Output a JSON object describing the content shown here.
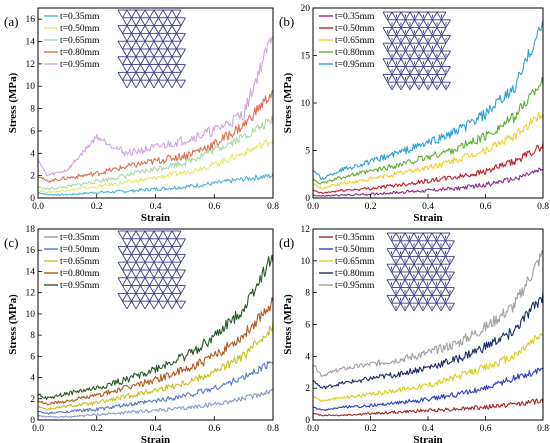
{
  "chart_data": [
    {
      "type": "line",
      "panel_label": "(a)",
      "xlabel": "Strain",
      "ylabel": "Stress (MPa)",
      "xlim": [
        0,
        0.8
      ],
      "ylim": [
        0,
        17
      ],
      "xticks": [
        "0.0",
        "0.2",
        "0.4",
        "0.6",
        "0.8"
      ],
      "yticks": [
        "0",
        "2",
        "4",
        "6",
        "8",
        "10",
        "12",
        "14",
        "16"
      ],
      "grid": false,
      "legend_position": "top-left",
      "inset": "triangular-hexagonal lattice",
      "series": [
        {
          "name": "t=0.35mm",
          "color": "#4fb3d9",
          "x": [
            0,
            0.03,
            0.1,
            0.2,
            0.3,
            0.4,
            0.5,
            0.6,
            0.7,
            0.8
          ],
          "y": [
            0.5,
            0.3,
            0.3,
            0.5,
            0.6,
            0.8,
            1.0,
            1.3,
            1.7,
            2.0
          ]
        },
        {
          "name": "t=0.50mm",
          "color": "#e8e870",
          "x": [
            0,
            0.03,
            0.1,
            0.2,
            0.3,
            0.4,
            0.5,
            0.6,
            0.7,
            0.8
          ],
          "y": [
            0.7,
            0.5,
            0.7,
            1.0,
            1.4,
            1.8,
            2.3,
            3.0,
            4.0,
            5.2
          ]
        },
        {
          "name": "t=0.65mm",
          "color": "#a8d8a8",
          "x": [
            0,
            0.03,
            0.1,
            0.2,
            0.3,
            0.4,
            0.5,
            0.6,
            0.7,
            0.8
          ],
          "y": [
            1.0,
            0.8,
            1.0,
            1.5,
            2.0,
            2.6,
            3.2,
            4.3,
            5.5,
            7.0
          ]
        },
        {
          "name": "t=0.80mm",
          "color": "#e07050",
          "x": [
            0,
            0.03,
            0.1,
            0.2,
            0.3,
            0.4,
            0.5,
            0.6,
            0.7,
            0.8
          ],
          "y": [
            2.0,
            1.5,
            1.8,
            2.2,
            2.8,
            3.3,
            3.8,
            4.8,
            6.5,
            9.5
          ]
        },
        {
          "name": "t=0.95mm",
          "color": "#d0a8e0",
          "x": [
            0,
            0.03,
            0.1,
            0.2,
            0.3,
            0.4,
            0.5,
            0.6,
            0.7,
            0.8
          ],
          "y": [
            3.5,
            2.0,
            2.5,
            5.5,
            4.0,
            4.5,
            5.2,
            6.0,
            7.5,
            14.8
          ]
        }
      ]
    },
    {
      "type": "line",
      "panel_label": "(b)",
      "xlabel": "Strain",
      "ylabel": "Stress (MPa)",
      "xlim": [
        0,
        0.8
      ],
      "ylim": [
        0,
        20
      ],
      "xticks": [
        "0.0",
        "0.2",
        "0.4",
        "0.6",
        "0.8"
      ],
      "yticks": [
        "0",
        "5",
        "10",
        "15",
        "20"
      ],
      "grid": false,
      "legend_position": "top-left",
      "inset": "snowflake hexagonal lattice",
      "series": [
        {
          "name": "t=0.35mm",
          "color": "#8b2c8b",
          "x": [
            0,
            0.03,
            0.1,
            0.2,
            0.3,
            0.4,
            0.5,
            0.6,
            0.7,
            0.8
          ],
          "y": [
            0.3,
            0.2,
            0.3,
            0.4,
            0.6,
            0.8,
            1.0,
            1.4,
            2.0,
            3.0
          ]
        },
        {
          "name": "t=0.50mm",
          "color": "#c0202c",
          "x": [
            0,
            0.03,
            0.1,
            0.2,
            0.3,
            0.4,
            0.5,
            0.6,
            0.7,
            0.8
          ],
          "y": [
            0.8,
            0.5,
            0.8,
            1.0,
            1.4,
            1.8,
            2.2,
            2.8,
            3.8,
            5.5
          ]
        },
        {
          "name": "t=0.65mm",
          "color": "#f0d030",
          "x": [
            0,
            0.03,
            0.1,
            0.2,
            0.3,
            0.4,
            0.5,
            0.6,
            0.7,
            0.8
          ],
          "y": [
            1.5,
            1.0,
            1.5,
            2.0,
            2.6,
            3.2,
            4.0,
            5.0,
            6.5,
            9.0
          ]
        },
        {
          "name": "t=0.80mm",
          "color": "#5cb030",
          "x": [
            0,
            0.03,
            0.1,
            0.2,
            0.3,
            0.4,
            0.5,
            0.6,
            0.7,
            0.8
          ],
          "y": [
            2.0,
            1.5,
            2.2,
            2.8,
            3.5,
            4.3,
            5.2,
            6.5,
            8.5,
            12.5
          ]
        },
        {
          "name": "t=0.95mm",
          "color": "#2ea0d8",
          "x": [
            0,
            0.03,
            0.1,
            0.2,
            0.3,
            0.4,
            0.5,
            0.6,
            0.7,
            0.8
          ],
          "y": [
            3.0,
            2.0,
            3.0,
            3.8,
            4.8,
            5.8,
            7.0,
            8.8,
            11.5,
            18.5
          ]
        }
      ]
    },
    {
      "type": "line",
      "panel_label": "(c)",
      "xlabel": "Strain",
      "ylabel": "Stress (MPa)",
      "xlim": [
        0,
        0.8
      ],
      "ylim": [
        0,
        18
      ],
      "xticks": [
        "0.0",
        "0.2",
        "0.4",
        "0.6",
        "0.8"
      ],
      "yticks": [
        "0",
        "2",
        "4",
        "6",
        "8",
        "10",
        "12",
        "14",
        "16",
        "18"
      ],
      "grid": false,
      "legend_position": "top-left",
      "inset": "triangular-hexagonal lattice",
      "series": [
        {
          "name": "t=0.35mm",
          "color": "#8899cc",
          "x": [
            0,
            0.03,
            0.1,
            0.2,
            0.3,
            0.4,
            0.5,
            0.6,
            0.7,
            0.8
          ],
          "y": [
            0.4,
            0.3,
            0.3,
            0.5,
            0.7,
            0.9,
            1.1,
            1.5,
            2.0,
            2.8
          ]
        },
        {
          "name": "t=0.50mm",
          "color": "#5a78c8",
          "x": [
            0,
            0.03,
            0.1,
            0.2,
            0.3,
            0.4,
            0.5,
            0.6,
            0.7,
            0.8
          ],
          "y": [
            0.8,
            0.6,
            0.8,
            1.0,
            1.4,
            1.8,
            2.3,
            3.0,
            4.0,
            5.5
          ]
        },
        {
          "name": "t=0.65mm",
          "color": "#c8c020",
          "x": [
            0,
            0.03,
            0.1,
            0.2,
            0.3,
            0.4,
            0.5,
            0.6,
            0.7,
            0.8
          ],
          "y": [
            1.3,
            1.0,
            1.3,
            1.6,
            2.2,
            2.8,
            3.5,
            4.5,
            6.0,
            8.8
          ]
        },
        {
          "name": "t=0.80mm",
          "color": "#b05a20",
          "x": [
            0,
            0.03,
            0.1,
            0.2,
            0.3,
            0.4,
            0.5,
            0.6,
            0.7,
            0.8
          ],
          "y": [
            1.8,
            1.5,
            1.8,
            2.3,
            3.0,
            3.8,
            4.7,
            6.0,
            8.0,
            11.2
          ]
        },
        {
          "name": "t=0.95mm",
          "color": "#2a5a2a",
          "x": [
            0,
            0.03,
            0.1,
            0.2,
            0.3,
            0.4,
            0.5,
            0.6,
            0.7,
            0.8
          ],
          "y": [
            2.5,
            2.0,
            2.5,
            3.0,
            3.8,
            4.8,
            6.0,
            7.8,
            10.5,
            15.5
          ]
        }
      ]
    },
    {
      "type": "line",
      "panel_label": "(d)",
      "xlabel": "Strain",
      "ylabel": "Stress (MPa)",
      "xlim": [
        0,
        0.8
      ],
      "ylim": [
        0,
        12
      ],
      "xticks": [
        "0.0",
        "0.2",
        "0.4",
        "0.6",
        "0.8"
      ],
      "yticks": [
        "0",
        "2",
        "4",
        "6",
        "8",
        "10",
        "12"
      ],
      "grid": false,
      "legend_position": "top-left",
      "inset": "snowflake hexagonal lattice",
      "series": [
        {
          "name": "t=0.35mm",
          "color": "#a02828",
          "x": [
            0,
            0.03,
            0.1,
            0.2,
            0.3,
            0.4,
            0.5,
            0.6,
            0.7,
            0.8
          ],
          "y": [
            0.4,
            0.3,
            0.3,
            0.4,
            0.5,
            0.6,
            0.7,
            0.8,
            1.0,
            1.2
          ]
        },
        {
          "name": "t=0.50mm",
          "color": "#3040c0",
          "x": [
            0,
            0.03,
            0.1,
            0.2,
            0.3,
            0.4,
            0.5,
            0.6,
            0.7,
            0.8
          ],
          "y": [
            0.8,
            0.6,
            0.8,
            0.9,
            1.1,
            1.3,
            1.6,
            2.0,
            2.6,
            3.2
          ]
        },
        {
          "name": "t=0.65mm",
          "color": "#d8d020",
          "x": [
            0,
            0.03,
            0.1,
            0.2,
            0.3,
            0.4,
            0.5,
            0.6,
            0.7,
            0.8
          ],
          "y": [
            1.5,
            1.2,
            1.4,
            1.6,
            1.9,
            2.2,
            2.7,
            3.3,
            4.0,
            5.5
          ]
        },
        {
          "name": "t=0.80mm",
          "color": "#1c2c6c",
          "x": [
            0,
            0.03,
            0.1,
            0.2,
            0.3,
            0.4,
            0.5,
            0.6,
            0.7,
            0.8
          ],
          "y": [
            2.5,
            2.0,
            2.3,
            2.6,
            2.9,
            3.3,
            3.8,
            4.6,
            5.6,
            7.8
          ]
        },
        {
          "name": "t=0.95mm",
          "color": "#a0a0a0",
          "x": [
            0,
            0.03,
            0.1,
            0.2,
            0.3,
            0.4,
            0.5,
            0.6,
            0.7,
            0.8
          ],
          "y": [
            3.5,
            2.8,
            3.2,
            3.5,
            3.8,
            4.2,
            4.8,
            5.8,
            7.2,
            10.5
          ]
        }
      ]
    }
  ]
}
